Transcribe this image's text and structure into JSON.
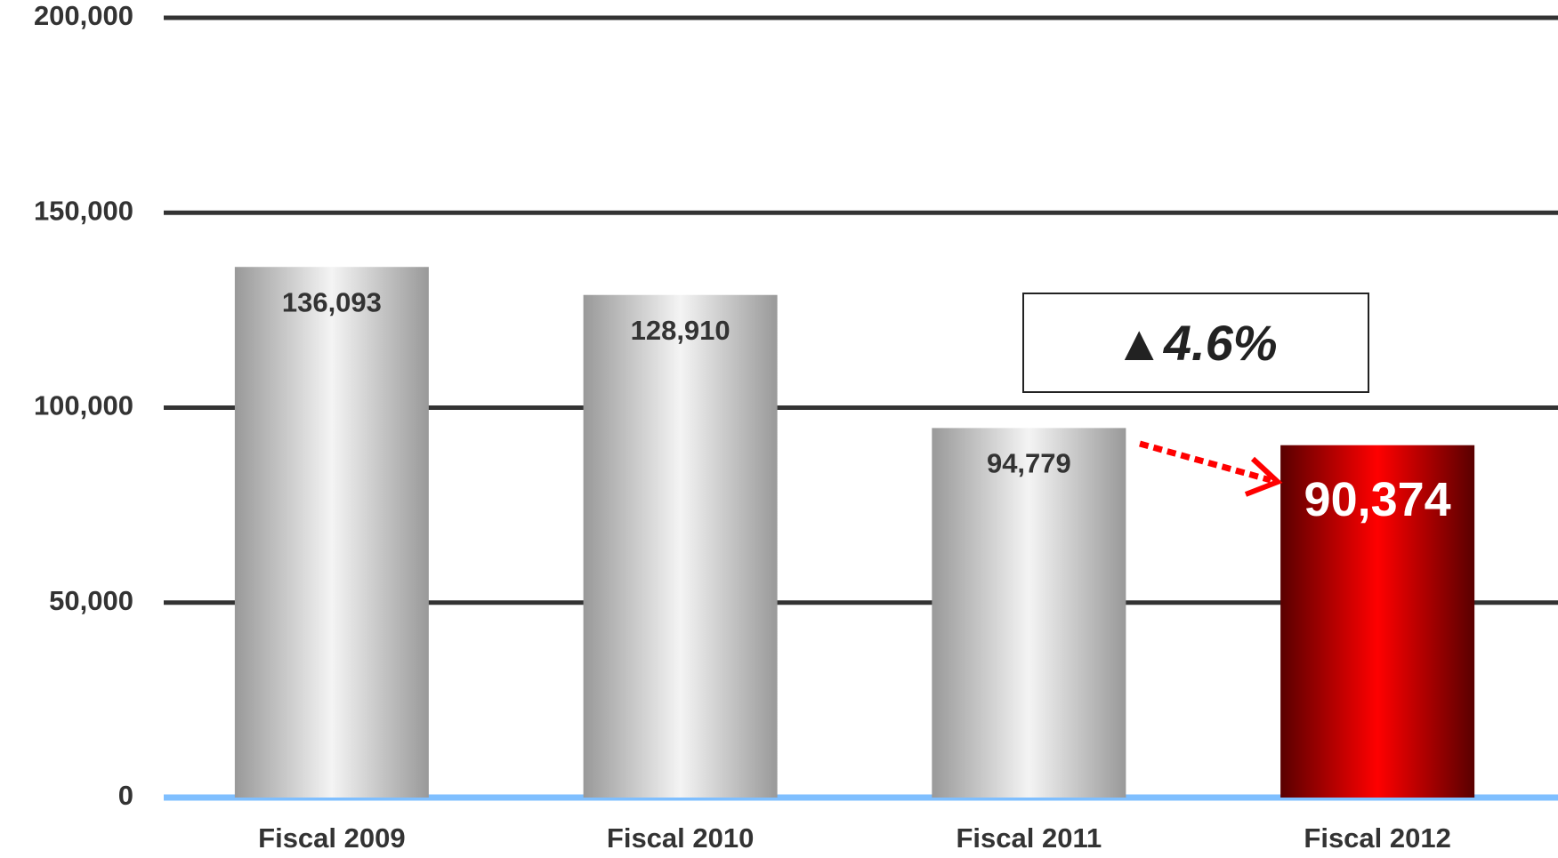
{
  "chart_data": {
    "type": "bar",
    "categories": [
      "Fiscal 2009",
      "Fiscal 2010",
      "Fiscal 2011",
      "Fiscal 2012"
    ],
    "values": [
      136093,
      128910,
      94779,
      90374
    ],
    "value_labels": [
      "136,093",
      "128,910",
      "94,779",
      "90,374"
    ],
    "colors": [
      "#b4b4b4",
      "#b4b4b4",
      "#b4b4b4",
      "#ff0000"
    ],
    "highlight": 3,
    "ylim": [
      0,
      200000
    ],
    "yticks": [
      0,
      {
        "value": 50000,
        "label": "50,000"
      },
      {
        "value": 100000,
        "label": "100,000"
      },
      {
        "value": 150000,
        "label": "150,000"
      },
      {
        "value": 200000,
        "label": "200,000"
      }
    ],
    "grid": true,
    "grid_color": "#333333",
    "baseline_color": "#7fbfff",
    "annotation": "▲4.6%"
  }
}
